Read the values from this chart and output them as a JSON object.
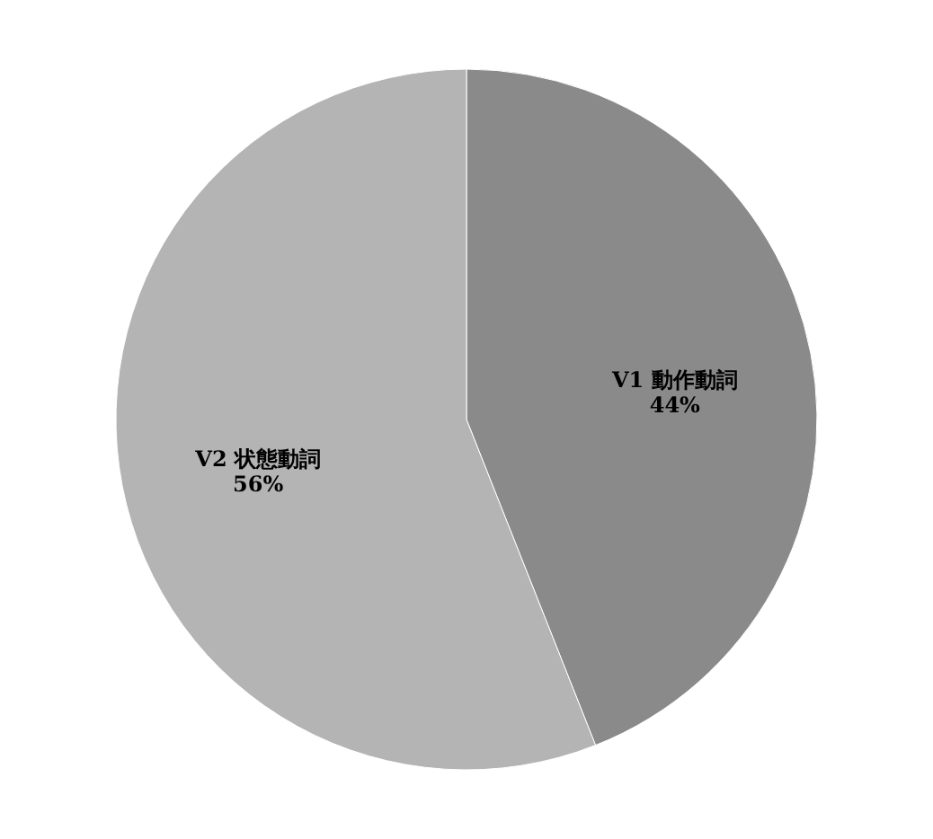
{
  "chart_data": {
    "type": "pie",
    "categories": [
      "V1 動作動詞",
      "V2 状態動詞"
    ],
    "values": [
      44,
      56
    ],
    "colors": [
      "#8a8a8a",
      "#b4b4b4"
    ],
    "value_labels": [
      "44%",
      "56%"
    ],
    "legend": false
  }
}
